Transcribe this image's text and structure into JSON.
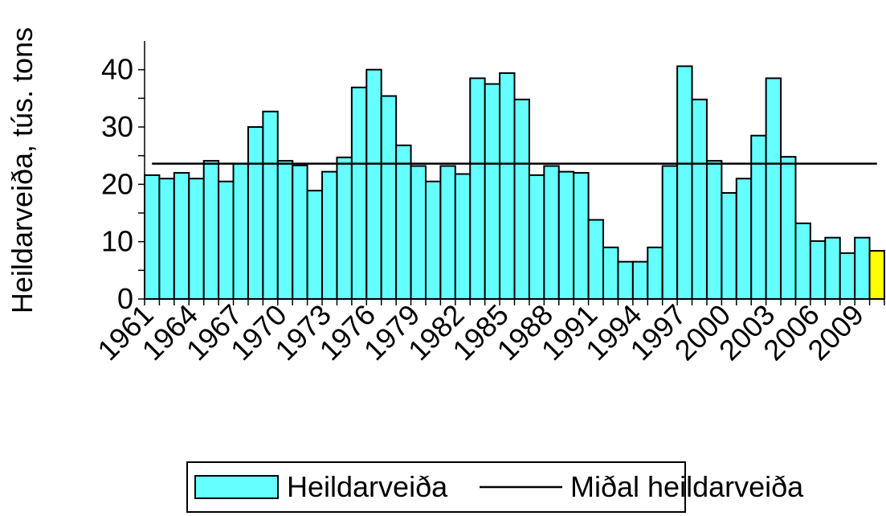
{
  "chart_data": {
    "type": "bar",
    "y_label": "Heildarveiða, tús. tons",
    "categories": [
      "1961",
      null,
      null,
      "1964",
      null,
      null,
      "1967",
      null,
      null,
      "1970",
      null,
      null,
      "1973",
      null,
      null,
      "1976",
      null,
      null,
      "1979",
      null,
      null,
      "1982",
      null,
      null,
      "1985",
      null,
      null,
      "1988",
      null,
      null,
      "1991",
      null,
      null,
      "1994",
      null,
      null,
      "1997",
      null,
      null,
      "2000",
      null,
      null,
      "2003",
      null,
      null,
      "2006",
      null,
      null,
      "2009",
      null
    ],
    "series": [
      {
        "name": "Heildarveiða",
        "color": "#66ffff",
        "colors": [
          "#66ffff",
          "#66ffff",
          "#66ffff",
          "#66ffff",
          "#66ffff",
          "#66ffff",
          "#66ffff",
          "#66ffff",
          "#66ffff",
          "#66ffff",
          "#66ffff",
          "#66ffff",
          "#66ffff",
          "#66ffff",
          "#66ffff",
          "#66ffff",
          "#66ffff",
          "#66ffff",
          "#66ffff",
          "#66ffff",
          "#66ffff",
          "#66ffff",
          "#66ffff",
          "#66ffff",
          "#66ffff",
          "#66ffff",
          "#66ffff",
          "#66ffff",
          "#66ffff",
          "#66ffff",
          "#66ffff",
          "#66ffff",
          "#66ffff",
          "#66ffff",
          "#66ffff",
          "#66ffff",
          "#66ffff",
          "#66ffff",
          "#66ffff",
          "#66ffff",
          "#66ffff",
          "#66ffff",
          "#66ffff",
          "#66ffff",
          "#66ffff",
          "#66ffff",
          "#66ffff",
          "#66ffff",
          "#66ffff",
          "#ffff00"
        ],
        "values": [
          21.6,
          21.0,
          22.0,
          21.0,
          24.1,
          20.5,
          23.6,
          30.0,
          32.7,
          24.1,
          23.3,
          18.9,
          22.2,
          24.7,
          36.9,
          40.0,
          35.4,
          26.8,
          23.2,
          20.5,
          23.2,
          21.8,
          38.5,
          37.5,
          39.4,
          34.8,
          21.6,
          23.2,
          22.2,
          22.0,
          13.8,
          9.0,
          6.5,
          6.5,
          9.0,
          23.2,
          40.6,
          34.8,
          24.1,
          18.5,
          21.0,
          28.5,
          38.5,
          24.8,
          13.2,
          10.1,
          10.7,
          8.0,
          10.7,
          8.4
        ]
      }
    ],
    "reference_line": {
      "name": "Miðal heildarveiða",
      "value": 23.6,
      "color": "#000000"
    },
    "ylim": [
      0,
      45
    ],
    "yticks": [
      0,
      10,
      20,
      30,
      40
    ],
    "minor_yticks": [
      5,
      15,
      25,
      35
    ],
    "grid": false
  }
}
